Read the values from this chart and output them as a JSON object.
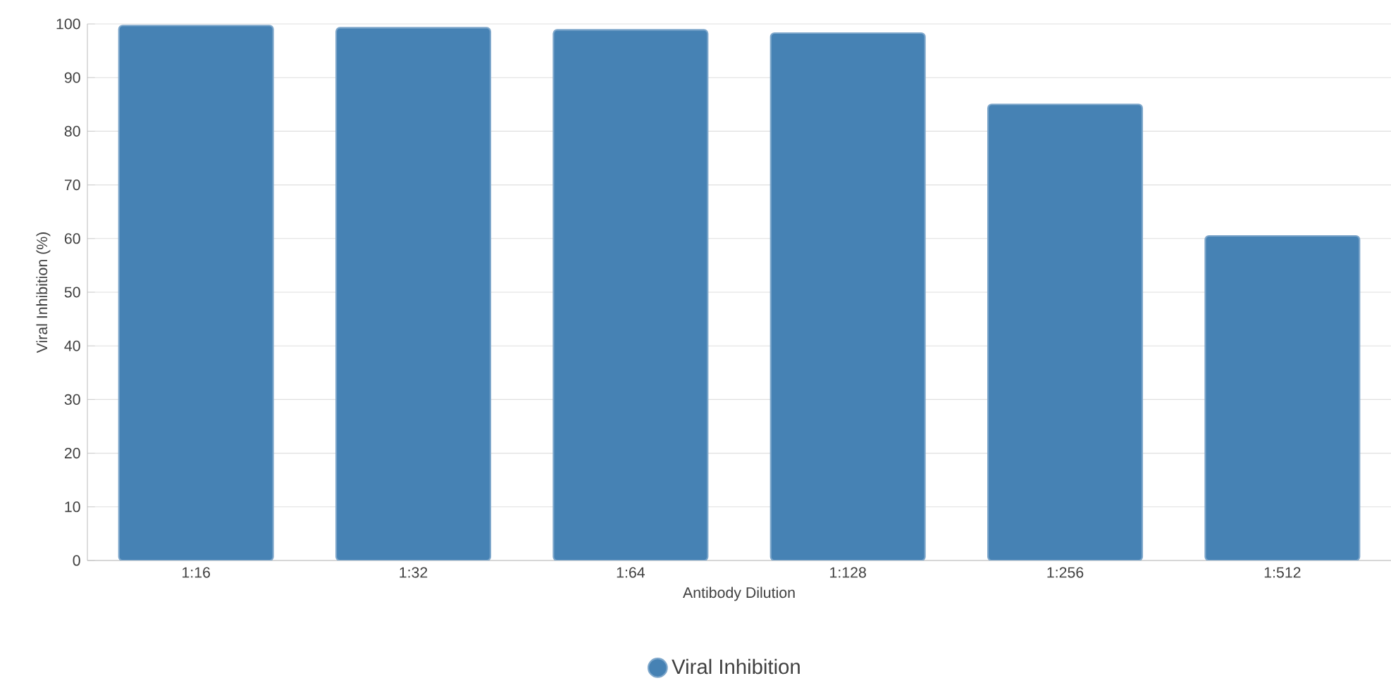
{
  "chart_data": {
    "type": "bar",
    "xlabel": "Antibody Dilution",
    "ylabel": "Viral Inhibition (%)",
    "categories": [
      "1:16",
      "1:32",
      "1:64",
      "1:128",
      "1:256",
      "1:512"
    ],
    "series": [
      {
        "name": "Viral Inhibition",
        "color": "#4682b4",
        "values": [
          99.7,
          99.3,
          98.9,
          98.3,
          85,
          60.5
        ]
      }
    ],
    "ylim": [
      0,
      100
    ],
    "yticks": [
      0,
      10,
      20,
      30,
      40,
      50,
      60,
      70,
      80,
      90,
      100
    ],
    "grid": "y",
    "legend": "bottom"
  }
}
